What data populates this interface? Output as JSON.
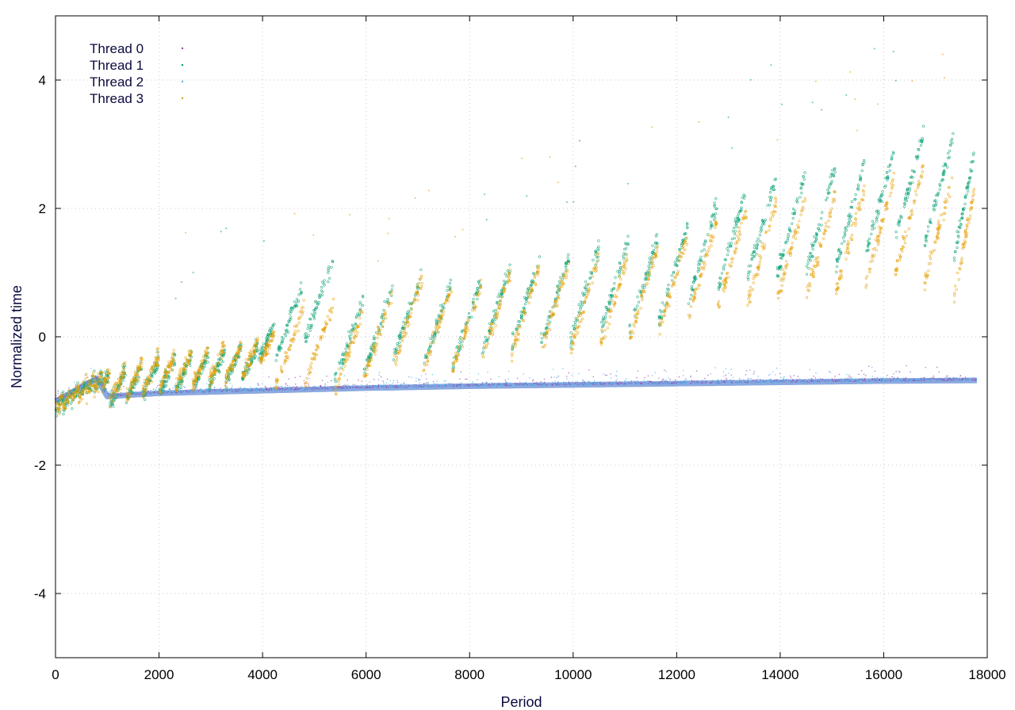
{
  "chart_data": {
    "type": "scatter",
    "xlabel": "Period",
    "ylabel": "Normalized time",
    "xlim": [
      0,
      18000
    ],
    "ylim": [
      -5,
      5
    ],
    "x_ticks": [
      0,
      2000,
      4000,
      6000,
      8000,
      10000,
      12000,
      14000,
      16000,
      18000
    ],
    "y_ticks": [
      -4,
      -2,
      0,
      2,
      4
    ],
    "grid": true,
    "legend_position": "top-left",
    "series": [
      {
        "name": "Thread 0",
        "color": "#9a4ab0",
        "pattern": "baseline",
        "points": [
          [
            0,
            -1.0
          ],
          [
            200,
            -0.92
          ],
          [
            400,
            -0.83
          ],
          [
            600,
            -0.74
          ],
          [
            800,
            -0.65
          ],
          [
            1000,
            -0.93
          ],
          [
            2000,
            -0.88
          ],
          [
            4000,
            -0.84
          ],
          [
            6000,
            -0.8
          ],
          [
            8000,
            -0.77
          ],
          [
            10000,
            -0.75
          ],
          [
            12000,
            -0.73
          ],
          [
            14000,
            -0.71
          ],
          [
            16000,
            -0.69
          ],
          [
            17800,
            -0.68
          ]
        ]
      },
      {
        "name": "Thread 1",
        "color": "#009e73",
        "pattern": "sawtooth",
        "points": [
          [
            0,
            -1.0
          ],
          [
            600,
            -0.7
          ],
          [
            1000,
            -0.55
          ],
          [
            1500,
            -0.5
          ],
          [
            2000,
            -0.35
          ],
          [
            3000,
            -0.25
          ],
          [
            4000,
            -0.1
          ],
          [
            5200,
            1.4
          ],
          [
            6000,
            0.5
          ],
          [
            7000,
            1.0
          ],
          [
            8000,
            0.8
          ],
          [
            9000,
            1.2
          ],
          [
            10000,
            1.3
          ],
          [
            11000,
            1.5
          ],
          [
            12000,
            1.6
          ],
          [
            13000,
            2.2
          ],
          [
            14000,
            2.5
          ],
          [
            15000,
            2.6
          ],
          [
            16000,
            2.8
          ],
          [
            17000,
            3.3
          ],
          [
            17700,
            2.9
          ]
        ]
      },
      {
        "name": "Thread 2",
        "color": "#56b4e9",
        "pattern": "baseline",
        "points": [
          [
            0,
            -1.0
          ],
          [
            200,
            -0.92
          ],
          [
            400,
            -0.83
          ],
          [
            600,
            -0.74
          ],
          [
            800,
            -0.65
          ],
          [
            1000,
            -0.93
          ],
          [
            2000,
            -0.88
          ],
          [
            4000,
            -0.84
          ],
          [
            6000,
            -0.8
          ],
          [
            8000,
            -0.77
          ],
          [
            10000,
            -0.75
          ],
          [
            12000,
            -0.73
          ],
          [
            14000,
            -0.71
          ],
          [
            16000,
            -0.69
          ],
          [
            17800,
            -0.68
          ]
        ]
      },
      {
        "name": "Thread 3",
        "color": "#e69f00",
        "pattern": "sawtooth",
        "points": [
          [
            0,
            -1.0
          ],
          [
            600,
            -0.7
          ],
          [
            1000,
            -0.55
          ],
          [
            1500,
            -0.45
          ],
          [
            2000,
            -0.3
          ],
          [
            3000,
            -0.2
          ],
          [
            4000,
            -0.05
          ],
          [
            5000,
            0.6
          ],
          [
            6000,
            0.4
          ],
          [
            7000,
            0.9
          ],
          [
            8000,
            0.75
          ],
          [
            9000,
            1.1
          ],
          [
            10000,
            1.2
          ],
          [
            11000,
            1.3
          ],
          [
            12000,
            1.5
          ],
          [
            13000,
            1.9
          ],
          [
            14000,
            2.1
          ],
          [
            15000,
            2.2
          ],
          [
            16000,
            2.4
          ],
          [
            17000,
            2.7
          ],
          [
            17700,
            2.3
          ]
        ]
      }
    ]
  }
}
